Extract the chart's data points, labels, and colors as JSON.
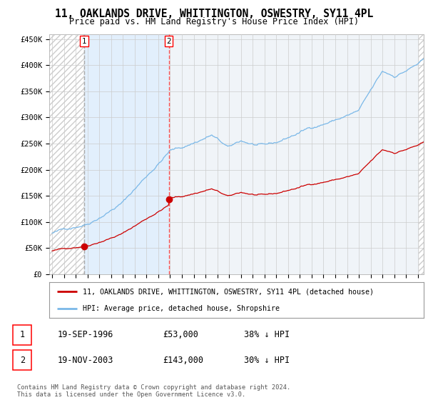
{
  "title": "11, OAKLANDS DRIVE, WHITTINGTON, OSWESTRY, SY11 4PL",
  "subtitle": "Price paid vs. HM Land Registry's House Price Index (HPI)",
  "xlim_left": 1993.75,
  "xlim_right": 2025.5,
  "ylim": [
    0,
    460000
  ],
  "yticks": [
    0,
    50000,
    100000,
    150000,
    200000,
    250000,
    300000,
    350000,
    400000,
    450000
  ],
  "ytick_labels": [
    "£0",
    "£50K",
    "£100K",
    "£150K",
    "£200K",
    "£250K",
    "£300K",
    "£350K",
    "£400K",
    "£450K"
  ],
  "tr1_year": 1996.72,
  "tr1_price": 53000,
  "tr2_year": 2003.88,
  "tr2_price": 143000,
  "hpi_color": "#7ab8e8",
  "price_color": "#cc0000",
  "vline1_color": "#aaaaaa",
  "vline2_color": "#ff5555",
  "fill_color": "#ddeeff",
  "hatch_color": "#cccccc",
  "background_color": "#ffffff",
  "plot_bg_color": "#f0f4f8",
  "grid_color": "#cccccc",
  "legend_line1": "11, OAKLANDS DRIVE, WHITTINGTON, OSWESTRY, SY11 4PL (detached house)",
  "legend_line2": "HPI: Average price, detached house, Shropshire",
  "table_rows": [
    [
      "1",
      "19-SEP-1996",
      "£53,000",
      "38% ↓ HPI"
    ],
    [
      "2",
      "19-NOV-2003",
      "£143,000",
      "30% ↓ HPI"
    ]
  ],
  "footnote": "Contains HM Land Registry data © Crown copyright and database right 2024.\nThis data is licensed under the Open Government Licence v3.0."
}
